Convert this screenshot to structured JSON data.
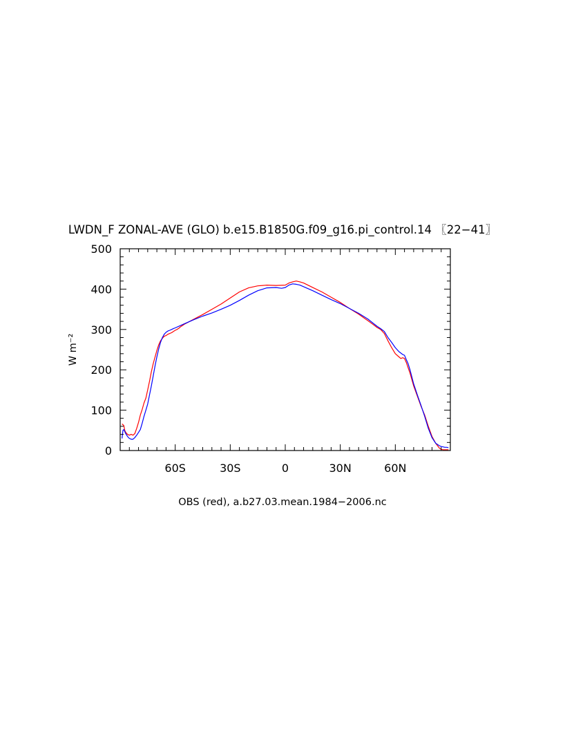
{
  "chart_data": {
    "type": "line",
    "title": "LWDN_F ZONAL-AVE (GLO) b.e15.B1850G.f09_g16.pi_control.14 〖22−41〗",
    "xlabel": "OBS (red), a.b27.03.mean.1984−2006.nc",
    "ylabel": "W m⁻²",
    "xlim": [
      -90,
      90
    ],
    "ylim": [
      0,
      500
    ],
    "x_ticks": [
      {
        "value": -60,
        "label": "60S"
      },
      {
        "value": -30,
        "label": "30S"
      },
      {
        "value": 0,
        "label": "0"
      },
      {
        "value": 30,
        "label": "30N"
      },
      {
        "value": 60,
        "label": "60N"
      }
    ],
    "y_ticks": [
      {
        "value": 0,
        "label": "0"
      },
      {
        "value": 100,
        "label": "100"
      },
      {
        "value": 200,
        "label": "200"
      },
      {
        "value": 300,
        "label": "300"
      },
      {
        "value": 400,
        "label": "400"
      },
      {
        "value": 500,
        "label": "500"
      }
    ],
    "grid": false,
    "series": [
      {
        "color": "#ff0000",
        "x": [
          -89,
          -88,
          -87.5,
          -87,
          -86,
          -85,
          -84,
          -83,
          -82,
          -81,
          -80,
          -79,
          -78,
          -77,
          -76,
          -75,
          -74,
          -73,
          -72,
          -71,
          -70,
          -69,
          -68,
          -67,
          -66,
          -65,
          -64,
          -63,
          -62,
          -61,
          -60,
          -59,
          -58,
          -57,
          -56,
          -55,
          -50,
          -45,
          -40,
          -35,
          -30,
          -25,
          -20,
          -15,
          -10,
          -5,
          0,
          2,
          4,
          6,
          8,
          10,
          15,
          20,
          25,
          30,
          35,
          40,
          45,
          48,
          50,
          52,
          54,
          56,
          58,
          60,
          62,
          63,
          64,
          65,
          66,
          67,
          68,
          70,
          72,
          74,
          76,
          78,
          80,
          82,
          84,
          85,
          86,
          87,
          88,
          89
        ],
        "y": [
          66,
          62,
          50,
          45,
          40,
          38,
          40,
          38,
          42,
          55,
          70,
          88,
          102,
          118,
          130,
          150,
          172,
          195,
          215,
          232,
          248,
          262,
          272,
          278,
          283,
          285,
          288,
          290,
          292,
          295,
          298,
          300,
          303,
          307,
          310,
          313,
          325,
          337,
          350,
          363,
          378,
          393,
          403,
          408,
          410,
          409,
          410,
          415,
          418,
          420,
          418,
          415,
          404,
          393,
          380,
          367,
          352,
          338,
          322,
          312,
          305,
          300,
          290,
          272,
          255,
          240,
          232,
          228,
          230,
          228,
          218,
          205,
          192,
          160,
          135,
          110,
          88,
          60,
          35,
          18,
          6,
          3,
          2,
          2,
          2,
          2
        ]
      },
      {
        "color": "#0000ff",
        "x": [
          -89,
          -88.5,
          -88,
          -87,
          -86,
          -85,
          -84,
          -83,
          -82,
          -81,
          -80,
          -79,
          -78,
          -77,
          -76,
          -75,
          -74,
          -73,
          -72,
          -71,
          -70,
          -69,
          -68,
          -67,
          -66,
          -65,
          -64,
          -63,
          -62,
          -61,
          -60,
          -55,
          -50,
          -45,
          -40,
          -35,
          -30,
          -25,
          -20,
          -15,
          -10,
          -5,
          -2,
          0,
          2,
          4,
          6,
          8,
          10,
          15,
          20,
          25,
          30,
          35,
          40,
          45,
          48,
          50,
          52,
          54,
          56,
          58,
          60,
          62,
          64,
          65,
          66,
          67,
          68,
          70,
          72,
          74,
          76,
          78,
          80,
          82,
          84,
          85,
          86,
          87,
          88,
          89
        ],
        "y": [
          30,
          50,
          52,
          42,
          35,
          30,
          28,
          28,
          32,
          38,
          45,
          52,
          68,
          85,
          100,
          115,
          138,
          160,
          185,
          210,
          232,
          252,
          268,
          280,
          288,
          293,
          296,
          298,
          300,
          302,
          304,
          314,
          324,
          333,
          341,
          350,
          360,
          372,
          385,
          396,
          403,
          404,
          402,
          404,
          410,
          413,
          412,
          410,
          406,
          396,
          385,
          374,
          364,
          352,
          340,
          326,
          315,
          308,
          302,
          295,
          280,
          268,
          255,
          245,
          238,
          236,
          225,
          215,
          200,
          165,
          138,
          112,
          85,
          55,
          32,
          18,
          12,
          10,
          9,
          8,
          8,
          7
        ]
      }
    ]
  }
}
